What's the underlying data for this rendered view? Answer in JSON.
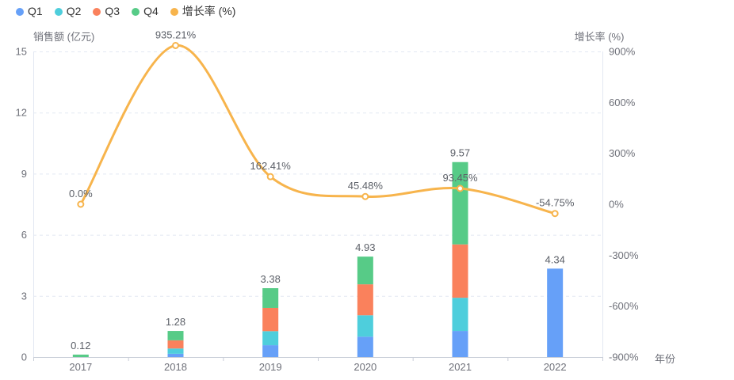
{
  "legend": {
    "items": [
      {
        "label": "Q1",
        "color": "#66A0F8"
      },
      {
        "label": "Q2",
        "color": "#4ECEDC"
      },
      {
        "label": "Q3",
        "color": "#FA815C"
      },
      {
        "label": "Q4",
        "color": "#57CB87"
      },
      {
        "label": "增长率 (%)",
        "color": "#F7B44C"
      }
    ]
  },
  "chart_data": {
    "type": "bar",
    "subtype": "stacked-bar-with-line-combo",
    "categories": [
      "2017",
      "2018",
      "2019",
      "2020",
      "2021",
      "2022"
    ],
    "series": [
      {
        "name": "Q1",
        "type": "bar",
        "stack": true,
        "color": "#66A0F8",
        "values": [
          0,
          0.16,
          0.58,
          1.0,
          1.28,
          4.34
        ]
      },
      {
        "name": "Q2",
        "type": "bar",
        "stack": true,
        "color": "#4ECEDC",
        "values": [
          0,
          0.26,
          0.69,
          1.05,
          1.63,
          0
        ]
      },
      {
        "name": "Q3",
        "type": "bar",
        "stack": true,
        "color": "#FA815C",
        "values": [
          0,
          0.4,
          1.14,
          1.52,
          2.62,
          0
        ]
      },
      {
        "name": "Q4",
        "type": "bar",
        "stack": true,
        "color": "#57CB87",
        "values": [
          0.12,
          0.46,
          0.97,
          1.36,
          4.04,
          0
        ]
      },
      {
        "name": "增长率 (%)",
        "type": "line",
        "axis": "right",
        "smooth": true,
        "color": "#F7B44C",
        "values": [
          0.0,
          935.21,
          162.41,
          45.48,
          93.45,
          -54.75
        ],
        "point_labels": [
          "0.0%",
          "935.21%",
          "162.41%",
          "45.48%",
          "93.45%",
          "-54.75%"
        ]
      }
    ],
    "bar_totals": [
      0.12,
      1.28,
      3.38,
      4.93,
      9.57,
      4.34
    ],
    "bar_total_labels": [
      "0.12",
      "1.28",
      "3.38",
      "4.93",
      "9.57",
      "4.34"
    ],
    "y_axis_left": {
      "name": "销售额 (亿元)",
      "min": 0,
      "max": 15,
      "tick_values": [
        15,
        12,
        9,
        6,
        3,
        0
      ],
      "ticks": [
        "15",
        "12",
        "9",
        "6",
        "3",
        "0"
      ]
    },
    "y_axis_right": {
      "name": "增长率 (%)",
      "min": -900,
      "max": 900,
      "ticks": [
        "900%",
        "600%",
        "300%",
        "0%",
        "-300%",
        "-600%",
        "-900%"
      ]
    },
    "x_axis": {
      "name": "年份"
    },
    "grid": "horizontal dashed gridlines",
    "legend_position": "top-left",
    "title": ""
  },
  "colors": {
    "background": "#FFFFFF",
    "grid_line": "#E2E8F2",
    "side_axis_line": "#E2E8F2",
    "bottom_axis_line": "#C9CED8",
    "tick_label": "#6E7079",
    "data_label": "#5C6068",
    "marker_fill": "#FFFFFF"
  }
}
